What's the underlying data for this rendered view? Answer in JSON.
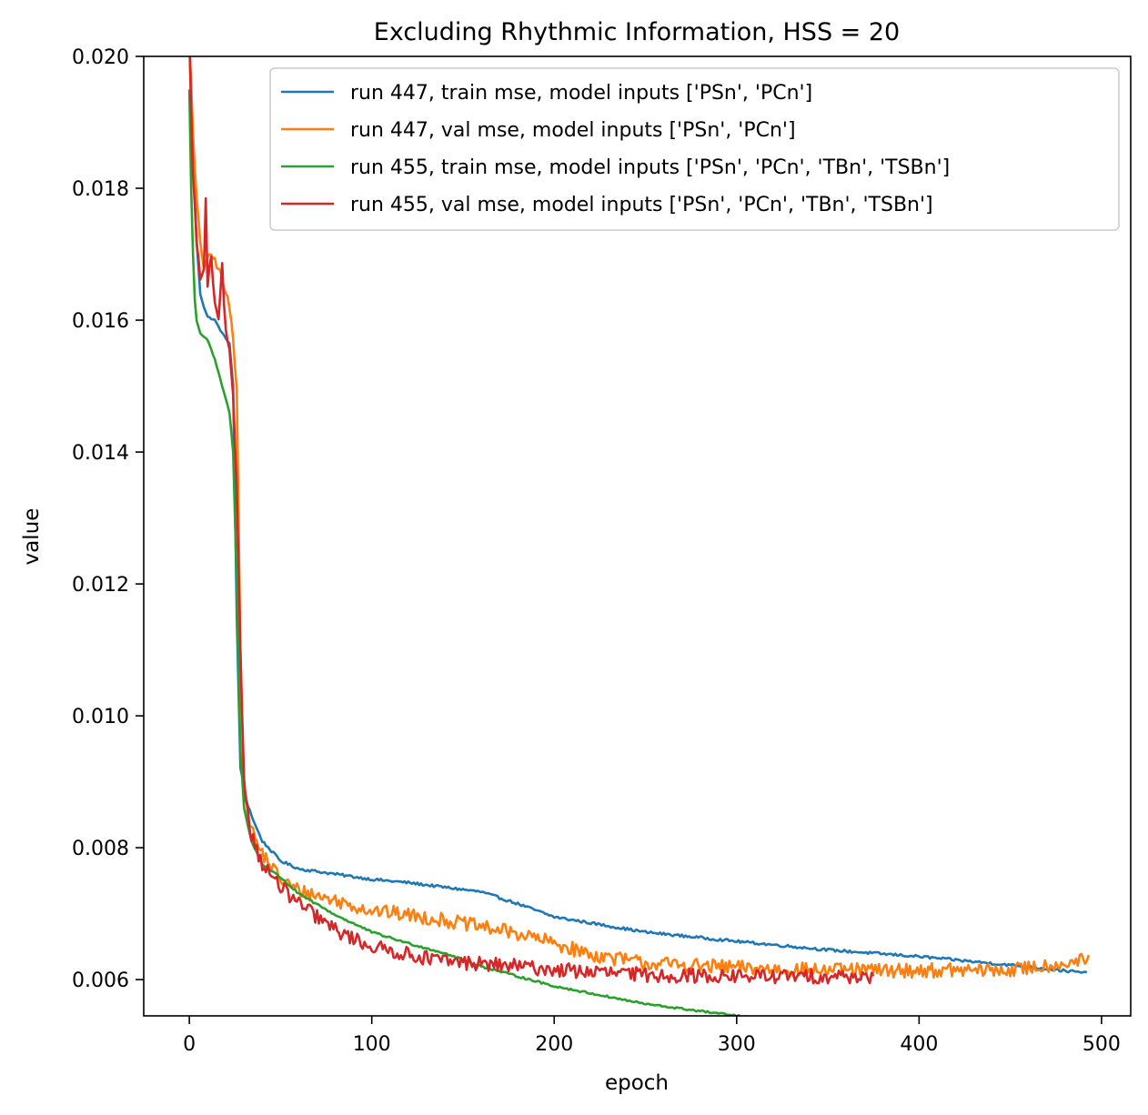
{
  "chart_data": {
    "type": "line",
    "title": "Excluding Rhythmic Information, HSS = 20",
    "xlabel": "epoch",
    "ylabel": "value",
    "xlim": [
      -25,
      516
    ],
    "ylim": [
      0.00545,
      0.02
    ],
    "xticks": [
      0,
      100,
      200,
      300,
      400,
      500
    ],
    "yticks": [
      0.006,
      0.008,
      0.01,
      0.012,
      0.014,
      0.016,
      0.018,
      0.02
    ],
    "xtick_labels": [
      "0",
      "100",
      "200",
      "300",
      "400",
      "500"
    ],
    "ytick_labels": [
      "0.006",
      "0.008",
      "0.010",
      "0.012",
      "0.014",
      "0.016",
      "0.018",
      "0.020"
    ],
    "legend_position": "top-right",
    "grid": false,
    "series": [
      {
        "name": "run 447, train mse, model inputs ['PSn', 'PCn']",
        "color": "#1f77b4",
        "last_epoch": 492,
        "noise": 2e-05,
        "x": [
          0,
          2,
          4,
          6,
          8,
          10,
          14,
          18,
          22,
          24,
          26,
          28,
          32,
          36,
          40,
          50,
          60,
          80,
          100,
          120,
          140,
          160,
          180,
          200,
          250,
          300,
          350,
          400,
          450,
          492
        ],
        "y": [
          0.0202,
          0.0185,
          0.0172,
          0.0164,
          0.0162,
          0.01605,
          0.016,
          0.0158,
          0.01565,
          0.015,
          0.0115,
          0.0092,
          0.00865,
          0.00835,
          0.0081,
          0.0078,
          0.00768,
          0.0076,
          0.00752,
          0.00747,
          0.0074,
          0.00733,
          0.00715,
          0.00695,
          0.00672,
          0.00658,
          0.00645,
          0.00635,
          0.00622,
          0.0061
        ]
      },
      {
        "name": "run 447, val mse, model inputs ['PSn', 'PCn']",
        "color": "#ff7f0e",
        "last_epoch": 493,
        "noise": 0.00011,
        "x": [
          0,
          2,
          4,
          6,
          8,
          12,
          16,
          20,
          22,
          24,
          26,
          28,
          30,
          34,
          38,
          50,
          60,
          80,
          100,
          120,
          140,
          160,
          180,
          200,
          220,
          250,
          300,
          350,
          400,
          450,
          493
        ],
        "y": [
          0.0203,
          0.0188,
          0.0178,
          0.0172,
          0.0168,
          0.017,
          0.0168,
          0.0164,
          0.0162,
          0.0157,
          0.015,
          0.011,
          0.0088,
          0.0083,
          0.008,
          0.00752,
          0.00735,
          0.0072,
          0.00705,
          0.00698,
          0.0069,
          0.0068,
          0.0067,
          0.00655,
          0.00638,
          0.00625,
          0.00618,
          0.00614,
          0.00614,
          0.00614,
          0.0063
        ]
      },
      {
        "name": "run 455, train mse, model inputs ['PSn', 'PCn', 'TBn', 'TSBn']",
        "color": "#2ca02c",
        "last_epoch": 375,
        "noise": 1.5e-05,
        "x": [
          0,
          1,
          2,
          3,
          4,
          6,
          10,
          14,
          18,
          22,
          24,
          26,
          28,
          30,
          34,
          40,
          50,
          60,
          80,
          100,
          120,
          140,
          160,
          180,
          200,
          250,
          300,
          350,
          375
        ],
        "y": [
          0.0195,
          0.018,
          0.017,
          0.0163,
          0.016,
          0.0158,
          0.0157,
          0.0154,
          0.015,
          0.0146,
          0.014,
          0.012,
          0.0095,
          0.0086,
          0.0081,
          0.00775,
          0.00755,
          0.0073,
          0.00698,
          0.00672,
          0.00655,
          0.0064,
          0.0062,
          0.00605,
          0.0059,
          0.00563,
          0.00545,
          0.00528,
          0.00512
        ]
      },
      {
        "name": "run 455, val mse, model inputs ['PSn', 'PCn', 'TBn', 'TSBn']",
        "color": "#d62728",
        "last_epoch": 375,
        "noise": 0.00011,
        "x": [
          0,
          2,
          4,
          6,
          8,
          9,
          10,
          12,
          14,
          16,
          18,
          20,
          22,
          24,
          26,
          28,
          30,
          34,
          40,
          50,
          60,
          80,
          100,
          120,
          140,
          160,
          180,
          200,
          250,
          300,
          350,
          375
        ],
        "y": [
          0.0203,
          0.0182,
          0.0172,
          0.0166,
          0.0168,
          0.0178,
          0.0165,
          0.017,
          0.0162,
          0.016,
          0.0168,
          0.0158,
          0.0155,
          0.0148,
          0.0135,
          0.011,
          0.009,
          0.0082,
          0.00775,
          0.0074,
          0.00715,
          0.00675,
          0.0065,
          0.00638,
          0.00628,
          0.00624,
          0.0062,
          0.00615,
          0.00607,
          0.00605,
          0.00605,
          0.00605
        ]
      }
    ]
  }
}
